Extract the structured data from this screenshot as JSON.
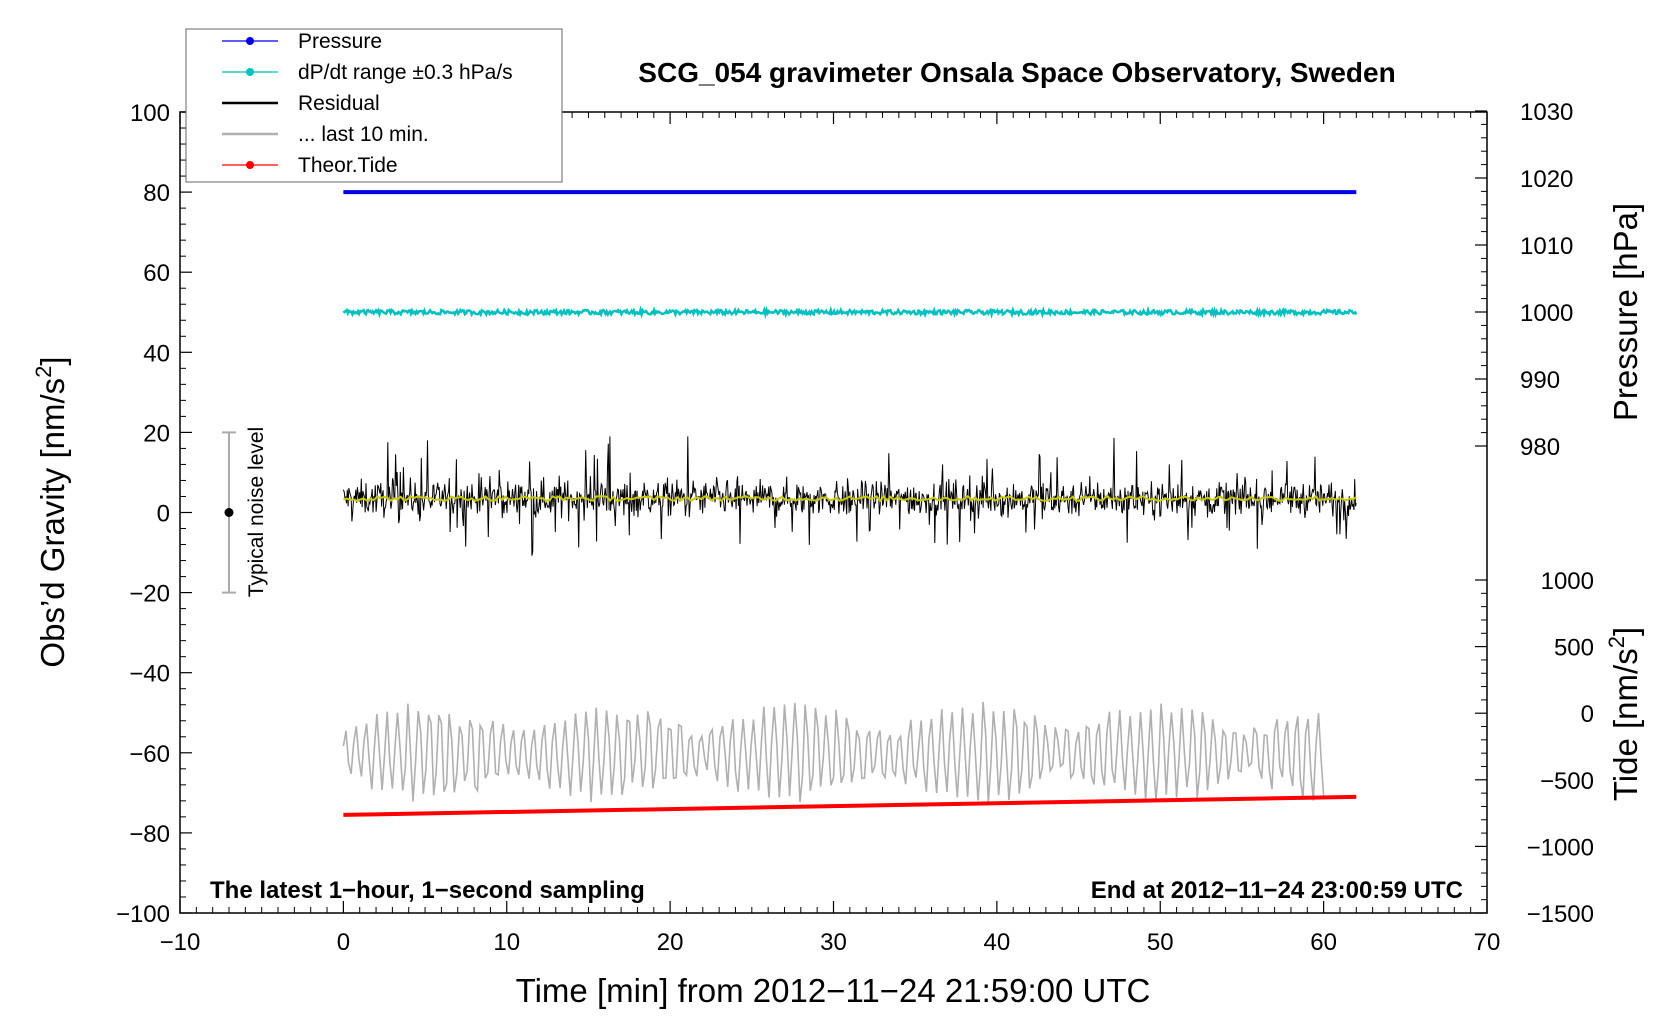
{
  "chart_data": {
    "type": "line",
    "title": "SCG_054 gravimeter Onsala Space Observatory, Sweden",
    "xlabel": "Time [min] from 2012−11−24 21:59:00 UTC",
    "ylabel": "Obs’d Gravity [nm/s2]",
    "ylabel_main": "Obs’d Gravity [nm/s",
    "ylabel_sup": "2",
    "ylabel_end": "]",
    "y2label": "Pressure [hPa]",
    "y3label_main": "Tide [nm/s",
    "y3label_sup": "2",
    "y3label_end": "]",
    "xlim": [
      -10,
      70
    ],
    "ylim": [
      -100,
      100
    ],
    "pressure_axis_range": [
      980,
      1030
    ],
    "tide_axis_range": [
      -1500,
      1000
    ],
    "x_ticks": [
      "−10",
      "0",
      "10",
      "20",
      "30",
      "40",
      "50",
      "60",
      "70"
    ],
    "y_ticks": [
      "−100",
      "−80",
      "−60",
      "−40",
      "−20",
      "0",
      "20",
      "40",
      "60",
      "80",
      "100"
    ],
    "pressure_ticks": [
      "980",
      "990",
      "1000",
      "1010",
      "1020",
      "1030"
    ],
    "tide_ticks": [
      "−1500",
      "−1000",
      "−500",
      "0",
      "500",
      "1000"
    ],
    "series": [
      {
        "name": "Pressure",
        "color": "#0000e6",
        "x": [
          0,
          62
        ],
        "value_hPa": [
          1018,
          1018
        ],
        "plotted_gravity_level": [
          80,
          80
        ]
      },
      {
        "name": "dP/dt range ±0.3 hPa/s",
        "color": "#00c0c0",
        "x": [
          0,
          62
        ],
        "plotted_gravity_level": [
          50,
          50
        ]
      },
      {
        "name": "Residual",
        "color": "#000000",
        "x": [
          0,
          62
        ],
        "mean": 3.5,
        "range": [
          -14,
          19
        ]
      },
      {
        "name": "... last 10 min.",
        "color": "#b0b0b0",
        "x": [
          0,
          60
        ],
        "plotted_gravity_level": [
          -60,
          -60
        ],
        "range": [
          -78,
          -44
        ]
      },
      {
        "name": "Theor.Tide",
        "color": "#ff0000",
        "x": [
          0,
          62
        ],
        "plotted_gravity_level": [
          -75.5,
          -71
        ]
      }
    ],
    "noise_bar": {
      "label": "Typical noise level",
      "x": -7,
      "center": 0,
      "range": [
        -20,
        20
      ]
    },
    "notes": {
      "left": "The latest 1−hour, 1−second sampling",
      "right": "End at 2012−11−24 23:00:59 UTC"
    },
    "legend_position": "top-left",
    "grid": false
  }
}
